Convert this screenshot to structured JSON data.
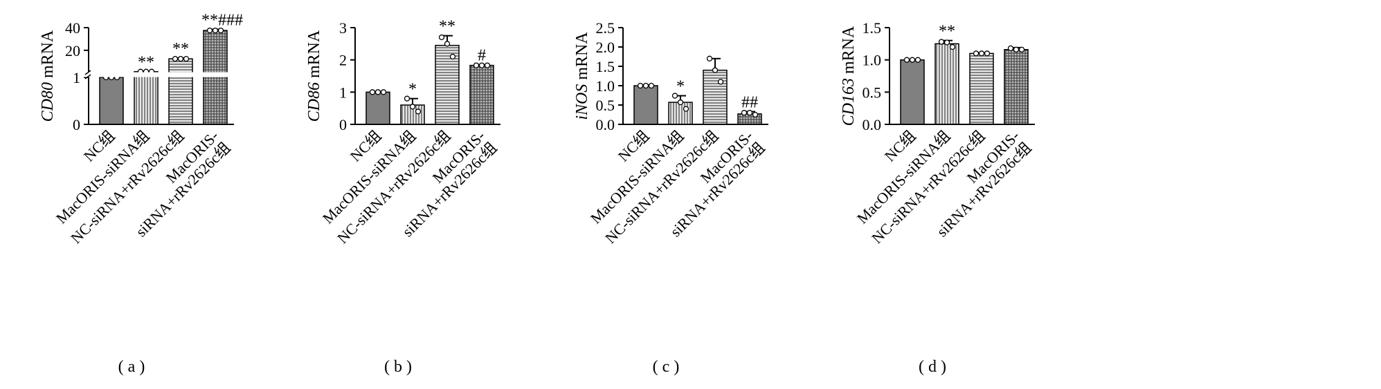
{
  "chart_data": [
    {
      "type": "bar",
      "ylabel_italic": "CD80",
      "ylabel": "mRNA",
      "panel_label": "(a)",
      "categories": [
        [
          "NC组"
        ],
        [
          "MacORIS-siRNA组"
        ],
        [
          "NC-siRNA+rRv2626c组"
        ],
        [
          "MacORIS-",
          "siRNA+rRv2626c组"
        ]
      ],
      "values": [
        1,
        1.2,
        12.5,
        37.5
      ],
      "errors": [
        0,
        0.1,
        0.8,
        1
      ],
      "points": [
        [
          1,
          1,
          1
        ],
        [
          1.2,
          1.2,
          1.2
        ],
        [
          12.5,
          12.5,
          12.5
        ],
        [
          37.5,
          37.5,
          37.5
        ]
      ],
      "annotations": [
        null,
        "**",
        "**",
        "**###"
      ],
      "segments": [
        {
          "ylim": [
            0,
            1
          ],
          "yticks": [
            0,
            1
          ]
        },
        {
          "ylim": [
            1,
            40
          ],
          "yticks": [
            20,
            40
          ]
        }
      ],
      "patterns": [
        "solid",
        "vertical",
        "horizontal",
        "grid"
      ],
      "color": "#808080"
    },
    {
      "type": "bar",
      "ylabel_italic": "CD86",
      "ylabel": "mRNA",
      "panel_label": "(b)",
      "categories": [
        [
          "NC组"
        ],
        [
          "MacORIS-siRNA组"
        ],
        [
          "NC-siRNA+rRv2626c组"
        ],
        [
          "MacORIS-",
          "siRNA+rRv2626c组"
        ]
      ],
      "values": [
        1.0,
        0.6,
        2.45,
        1.83
      ],
      "errors": [
        0.02,
        0.2,
        0.3,
        0.02
      ],
      "points": [
        [
          1,
          1,
          1
        ],
        [
          0.8,
          0.55,
          0.4
        ],
        [
          2.7,
          2.5,
          2.1
        ],
        [
          1.83,
          1.83,
          1.83
        ]
      ],
      "annotations": [
        null,
        "*",
        "**",
        "#"
      ],
      "ylim": [
        0,
        3
      ],
      "yticks": [
        0,
        1,
        2,
        3
      ],
      "patterns": [
        "solid",
        "vertical",
        "horizontal",
        "grid"
      ],
      "color": "#808080"
    },
    {
      "type": "bar",
      "ylabel_italic": "iNOS",
      "ylabel": "mRNA",
      "panel_label": "(c)",
      "categories": [
        [
          "NC组"
        ],
        [
          "MacORIS-siRNA组"
        ],
        [
          "NC-siRNA+rRv2626c组"
        ],
        [
          "MacORIS-",
          "siRNA+rRv2626c组"
        ]
      ],
      "values": [
        1.0,
        0.57,
        1.4,
        0.27
      ],
      "errors": [
        0.02,
        0.17,
        0.3,
        0.06
      ],
      "points": [
        [
          1,
          1,
          1
        ],
        [
          0.74,
          0.57,
          0.4
        ],
        [
          1.7,
          1.4,
          1.1
        ],
        [
          0.3,
          0.3,
          0.25
        ]
      ],
      "annotations": [
        null,
        "*",
        null,
        "##"
      ],
      "ylim": [
        0,
        2.5
      ],
      "yticks": [
        {
          "value": 0,
          "label": "0.0"
        },
        0.5,
        {
          "value": 1,
          "label": "1.0"
        },
        1.5,
        {
          "value": 2,
          "label": "2.0"
        },
        2.5
      ],
      "patterns": [
        "solid",
        "vertical",
        "horizontal",
        "grid"
      ],
      "color": "#808080"
    },
    {
      "type": "bar",
      "ylabel_italic": "CD163",
      "ylabel": "mRNA",
      "panel_label": "(d)",
      "categories": [
        [
          "NC组"
        ],
        [
          "MacORIS-siRNA组"
        ],
        [
          "NC-siRNA+rRv2626c组"
        ],
        [
          "MacORIS-",
          "siRNA+rRv2626c组"
        ]
      ],
      "values": [
        1.0,
        1.25,
        1.1,
        1.16
      ],
      "errors": [
        0.01,
        0.05,
        0.01,
        0.03
      ],
      "points": [
        [
          1,
          1,
          1
        ],
        [
          1.28,
          1.27,
          1.2
        ],
        [
          1.1,
          1.1,
          1.1
        ],
        [
          1.18,
          1.16,
          1.16
        ]
      ],
      "annotations": [
        null,
        "**",
        null,
        null
      ],
      "ylim": [
        0,
        1.5
      ],
      "yticks": [
        {
          "value": 0,
          "label": "0.0"
        },
        0.5,
        {
          "value": 1,
          "label": "1.0"
        },
        1.5
      ],
      "patterns": [
        "solid",
        "vertical",
        "horizontal",
        "grid"
      ],
      "color": "#808080"
    }
  ]
}
